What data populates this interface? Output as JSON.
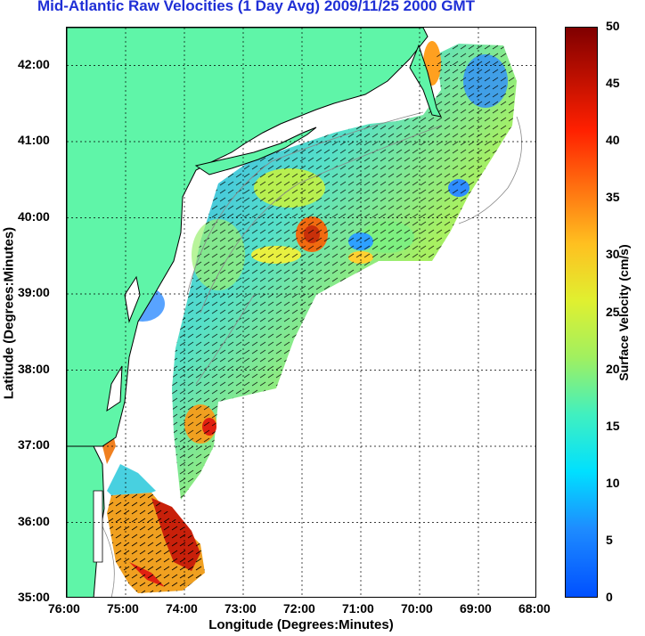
{
  "title": "Mid-Atlantic Raw Velocities (1 Day Avg) 2009/11/25 2000 GMT",
  "axes": {
    "xlabel": "Longitude (Degrees:Minutes)",
    "ylabel": "Latitude (Degrees:Minutes)",
    "x_ticks": [
      "76:00",
      "75:00",
      "74:00",
      "73:00",
      "72:00",
      "71:00",
      "70:00",
      "69:00",
      "68:00"
    ],
    "y_ticks": [
      "35:00",
      "36:00",
      "37:00",
      "38:00",
      "39:00",
      "40:00",
      "41:00",
      "42:00"
    ]
  },
  "colorbar": {
    "label": "Surface Velocity (cm/s)",
    "ticks": [
      "0",
      "5",
      "10",
      "15",
      "20",
      "25",
      "30",
      "35",
      "40",
      "45",
      "50"
    ],
    "range": [
      0,
      50
    ],
    "colormap": "jet"
  },
  "colors": {
    "land": "#5ff5a8",
    "coast": "#000000",
    "bathymetry": "#888888",
    "title": "#1f2fd6"
  }
}
